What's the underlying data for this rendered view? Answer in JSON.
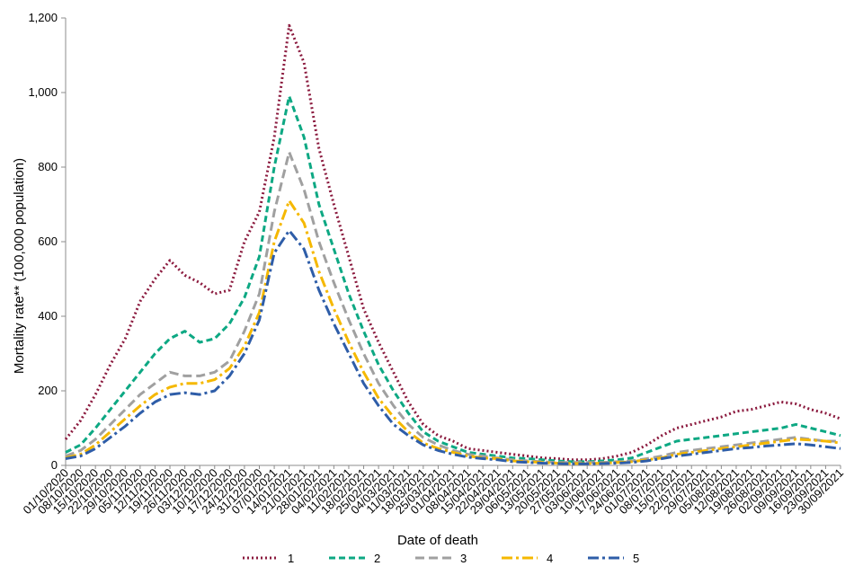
{
  "chart_data": {
    "type": "line",
    "title": "",
    "xlabel": "Date of death",
    "ylabel": "Mortality rate** (100,000 population)",
    "ylim": [
      0,
      1200
    ],
    "yticks": [
      0,
      200,
      400,
      600,
      800,
      1000,
      1200
    ],
    "ytick_labels": [
      "0",
      "200",
      "400",
      "600",
      "800",
      "1,000",
      "1,200"
    ],
    "grid": false,
    "legend_position": "bottom",
    "x_tick_labels": [
      "01/10/2020",
      "08/10/2020",
      "15/10/2020",
      "22/10/2020",
      "29/10/2020",
      "05/11/2020",
      "12/11/2020",
      "19/11/2020",
      "26/11/2020",
      "03/12/2020",
      "10/12/2020",
      "17/12/2020",
      "24/12/2020",
      "31/12/2020",
      "07/01/2021",
      "14/01/2021",
      "21/01/2021",
      "28/01/2021",
      "04/02/2021",
      "11/02/2021",
      "18/02/2021",
      "25/02/2021",
      "04/03/2021",
      "11/03/2021",
      "18/03/2021",
      "25/03/2021",
      "01/04/2021",
      "08/04/2021",
      "15/04/2021",
      "22/04/2021",
      "29/04/2021",
      "06/05/2021",
      "13/05/2021",
      "20/05/2021",
      "27/05/2021",
      "03/06/2021",
      "10/06/2021",
      "17/06/2021",
      "24/06/2021",
      "01/07/2021",
      "08/07/2021",
      "15/07/2021",
      "22/07/2021",
      "29/07/2021",
      "05/08/2021",
      "12/08/2021",
      "19/08/2021",
      "26/08/2021",
      "02/09/2021",
      "09/09/2021",
      "16/09/2021",
      "23/09/2021",
      "30/09/2021"
    ],
    "x": [
      "01/10/2020",
      "08/10/2020",
      "15/10/2020",
      "22/10/2020",
      "29/10/2020",
      "05/11/2020",
      "12/11/2020",
      "19/11/2020",
      "26/11/2020",
      "03/12/2020",
      "10/12/2020",
      "17/12/2020",
      "24/12/2020",
      "31/12/2020",
      "07/01/2021",
      "14/01/2021",
      "21/01/2021",
      "28/01/2021",
      "04/02/2021",
      "11/02/2021",
      "18/02/2021",
      "25/02/2021",
      "04/03/2021",
      "11/03/2021",
      "18/03/2021",
      "25/03/2021",
      "01/04/2021",
      "08/04/2021",
      "15/04/2021",
      "22/04/2021",
      "29/04/2021",
      "06/05/2021",
      "13/05/2021",
      "20/05/2021",
      "27/05/2021",
      "03/06/2021",
      "10/06/2021",
      "17/06/2021",
      "24/06/2021",
      "01/07/2021",
      "08/07/2021",
      "15/07/2021",
      "22/07/2021",
      "29/07/2021",
      "05/08/2021",
      "12/08/2021",
      "19/08/2021",
      "26/08/2021",
      "02/09/2021",
      "09/09/2021",
      "16/09/2021",
      "23/09/2021",
      "30/09/2021"
    ],
    "series": [
      {
        "name": "1",
        "color": "#8B1A3E",
        "dash": "2,3",
        "values": [
          70,
          120,
          190,
          270,
          340,
          440,
          500,
          550,
          510,
          490,
          460,
          470,
          600,
          680,
          880,
          1180,
          1080,
          850,
          700,
          560,
          420,
          330,
          250,
          170,
          110,
          80,
          65,
          45,
          40,
          35,
          30,
          25,
          20,
          18,
          15,
          15,
          18,
          25,
          35,
          55,
          80,
          100,
          110,
          120,
          130,
          145,
          150,
          160,
          170,
          165,
          150,
          140,
          125
        ]
      },
      {
        "name": "2",
        "color": "#0DA883",
        "dash": "7,4",
        "values": [
          35,
          55,
          100,
          150,
          200,
          250,
          300,
          340,
          360,
          330,
          340,
          380,
          450,
          560,
          800,
          990,
          880,
          700,
          580,
          460,
          360,
          270,
          200,
          140,
          90,
          65,
          50,
          35,
          30,
          25,
          20,
          18,
          15,
          12,
          10,
          10,
          12,
          15,
          20,
          35,
          50,
          65,
          70,
          75,
          80,
          85,
          90,
          95,
          100,
          110,
          100,
          90,
          80
        ]
      },
      {
        "name": "3",
        "color": "#A0A0A0",
        "dash": "10,5",
        "values": [
          25,
          40,
          70,
          110,
          150,
          190,
          220,
          250,
          240,
          240,
          250,
          280,
          360,
          460,
          680,
          840,
          740,
          600,
          490,
          390,
          300,
          220,
          160,
          110,
          75,
          55,
          40,
          30,
          25,
          20,
          15,
          12,
          10,
          8,
          8,
          8,
          8,
          10,
          12,
          18,
          25,
          35,
          40,
          45,
          50,
          55,
          60,
          65,
          70,
          75,
          70,
          65,
          65
        ]
      },
      {
        "name": "4",
        "color": "#F5B800",
        "dash": "12,4,3,4",
        "values": [
          20,
          30,
          55,
          90,
          125,
          160,
          190,
          210,
          220,
          220,
          230,
          260,
          320,
          410,
          600,
          710,
          650,
          520,
          420,
          330,
          250,
          180,
          130,
          90,
          60,
          45,
          35,
          25,
          20,
          18,
          12,
          10,
          8,
          6,
          5,
          5,
          6,
          8,
          10,
          15,
          20,
          30,
          35,
          40,
          45,
          50,
          55,
          60,
          65,
          70,
          68,
          65,
          60
        ]
      },
      {
        "name": "5",
        "color": "#2E5DA8",
        "dash": "12,4,3,4",
        "values": [
          18,
          25,
          45,
          75,
          105,
          140,
          170,
          190,
          195,
          190,
          200,
          240,
          300,
          390,
          570,
          630,
          580,
          470,
          380,
          300,
          220,
          160,
          110,
          80,
          55,
          40,
          30,
          22,
          18,
          15,
          10,
          8,
          6,
          5,
          4,
          4,
          5,
          6,
          8,
          12,
          18,
          25,
          30,
          35,
          40,
          45,
          48,
          52,
          55,
          58,
          55,
          50,
          45
        ]
      }
    ]
  }
}
